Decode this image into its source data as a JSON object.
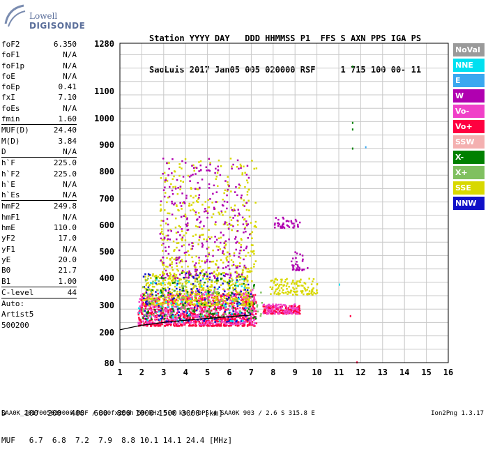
{
  "logo": {
    "line1": "Lowell",
    "line2": "DIGISONDE"
  },
  "header": {
    "line1": "Station YYYY DAY   DDD HHMMSS P1  FFS S AXN PPS IGA PS",
    "line2": "SaoLuis 2017 Jan05 005 020000 RSF     1 715 100 00- 11"
  },
  "params": [
    {
      "label": "foF2",
      "value": "6.350"
    },
    {
      "label": "foF1",
      "value": "N/A"
    },
    {
      "label": "foF1p",
      "value": "N/A"
    },
    {
      "label": "foE",
      "value": "N/A"
    },
    {
      "label": "foEp",
      "value": "0.41"
    },
    {
      "label": "fxI",
      "value": "7.10"
    },
    {
      "label": "foEs",
      "value": "N/A"
    },
    {
      "label": "fmin",
      "value": "1.60"
    },
    {
      "label": "MUF(D)",
      "value": "24.40",
      "sep": true
    },
    {
      "label": "M(D)",
      "value": "3.84"
    },
    {
      "label": "D",
      "value": "N/A"
    },
    {
      "label": "h`F",
      "value": "225.0",
      "sep": true
    },
    {
      "label": "h`F2",
      "value": "225.0"
    },
    {
      "label": "h`E",
      "value": "N/A"
    },
    {
      "label": "h`Es",
      "value": "N/A"
    },
    {
      "label": "hmF2",
      "value": "249.8",
      "sep": true
    },
    {
      "label": "hmF1",
      "value": "N/A"
    },
    {
      "label": "hmE",
      "value": "110.0"
    },
    {
      "label": "yF2",
      "value": "17.0"
    },
    {
      "label": "yF1",
      "value": "N/A"
    },
    {
      "label": "yE",
      "value": "20.0"
    },
    {
      "label": "B0",
      "value": "21.7"
    },
    {
      "label": "B1",
      "value": "1.00"
    },
    {
      "label": "C-level",
      "value": "44",
      "sep": true
    },
    {
      "label": "Auto:",
      "value": "",
      "sep": true
    },
    {
      "label": "Artist5",
      "value": ""
    },
    {
      "label": "500200",
      "value": ""
    }
  ],
  "legend": [
    {
      "label": "NoVal",
      "color": "#9a9a9a"
    },
    {
      "label": "NNE",
      "color": "#00e0f0"
    },
    {
      "label": "E",
      "color": "#3aa8f0"
    },
    {
      "label": "W",
      "color": "#b000b0"
    },
    {
      "label": "Vo-",
      "color": "#f040c8"
    },
    {
      "label": "Vo+",
      "color": "#ff0040"
    },
    {
      "label": "SSW",
      "color": "#f4b0b0"
    },
    {
      "label": "X-",
      "color": "#008000"
    },
    {
      "label": "X+",
      "color": "#80c060"
    },
    {
      "label": "SSE",
      "color": "#d8d800"
    },
    {
      "label": "NNW",
      "color": "#1010c8"
    }
  ],
  "bottom": {
    "d_row": "D    100  200  400  600  800 1000 1500 3000 [km]",
    "muf_row": "MUF   6.7  6.8  7.2  7.9  8.8 10.1 14.1 24.4 [MHz]"
  },
  "footer": {
    "left": "SAA0K_2017005020000.RSF / 300fx256h 50 kHz 5.0 km / DPS-4 SAA0K 903 / 2.6 S 315.8 E",
    "right": "Ion2Png 1.3.17"
  },
  "chart_data": {
    "type": "scatter",
    "title": "",
    "xlabel": "",
    "ylabel": "",
    "xlim": [
      1,
      16
    ],
    "ylim_labels": [
      80,
      200,
      300,
      400,
      500,
      600,
      700,
      800,
      900,
      1000,
      1100,
      1280
    ],
    "x_ticks": [
      1,
      2,
      3,
      4,
      5,
      6,
      7,
      8,
      9,
      10,
      11,
      12,
      13,
      14,
      15,
      16
    ],
    "grid": true,
    "scale_note": "nonlinear height scale",
    "trace": {
      "x": [
        1.0,
        2.0,
        3.0,
        4.0,
        5.0,
        6.0,
        7.0
      ],
      "y": [
        208,
        225,
        235,
        243,
        250,
        256,
        262
      ]
    },
    "clusters": [
      {
        "color": "#ff0040",
        "xrange": [
          1.8,
          7.2
        ],
        "yrange": [
          225,
          345
        ],
        "count": 900
      },
      {
        "color": "#f040c8",
        "xrange": [
          1.8,
          7.2
        ],
        "yrange": [
          230,
          360
        ],
        "count": 400
      },
      {
        "color": "#d8d800",
        "xrange": [
          2.0,
          7.0
        ],
        "yrange": [
          300,
          420
        ],
        "count": 500
      },
      {
        "color": "#d8d800",
        "xrange": [
          2.8,
          7.2
        ],
        "yrange": [
          420,
          850
        ],
        "count": 350
      },
      {
        "color": "#b000b0",
        "xrange": [
          2.8,
          6.9
        ],
        "yrange": [
          400,
          850
        ],
        "count": 300
      },
      {
        "color": "#1010c8",
        "xrange": [
          2.0,
          7.0
        ],
        "yrange": [
          240,
          420
        ],
        "count": 150
      },
      {
        "color": "#008000",
        "xrange": [
          2.0,
          7.2
        ],
        "yrange": [
          250,
          420
        ],
        "count": 120
      },
      {
        "color": "#80c060",
        "xrange": [
          2.0,
          7.5
        ],
        "yrange": [
          260,
          400
        ],
        "count": 100
      },
      {
        "color": "#00e0f0",
        "xrange": [
          1.8,
          7.0
        ],
        "yrange": [
          240,
          400
        ],
        "count": 60
      },
      {
        "color": "#ff0040",
        "xrange": [
          7.5,
          9.2
        ],
        "yrange": [
          270,
          300
        ],
        "count": 150
      },
      {
        "color": "#f040c8",
        "xrange": [
          7.5,
          9.2
        ],
        "yrange": [
          270,
          305
        ],
        "count": 80
      },
      {
        "color": "#d8d800",
        "xrange": [
          7.8,
          10.0
        ],
        "yrange": [
          340,
          400
        ],
        "count": 120
      },
      {
        "color": "#b000b0",
        "xrange": [
          8.0,
          9.2
        ],
        "yrange": [
          590,
          630
        ],
        "count": 40
      },
      {
        "color": "#b000b0",
        "xrange": [
          8.8,
          9.6
        ],
        "yrange": [
          430,
          500
        ],
        "count": 30
      }
    ],
    "points": [
      {
        "x": 11.6,
        "y": 1195,
        "color": "#008000"
      },
      {
        "x": 11.6,
        "y": 985,
        "color": "#008000"
      },
      {
        "x": 11.6,
        "y": 960,
        "color": "#008000"
      },
      {
        "x": 11.6,
        "y": 888,
        "color": "#008000"
      },
      {
        "x": 12.2,
        "y": 893,
        "color": "#3aa8f0"
      },
      {
        "x": 11.0,
        "y": 378,
        "color": "#00e0f0"
      },
      {
        "x": 11.5,
        "y": 262,
        "color": "#ff0040"
      },
      {
        "x": 11.8,
        "y": 85,
        "color": "#ff0040"
      }
    ]
  }
}
